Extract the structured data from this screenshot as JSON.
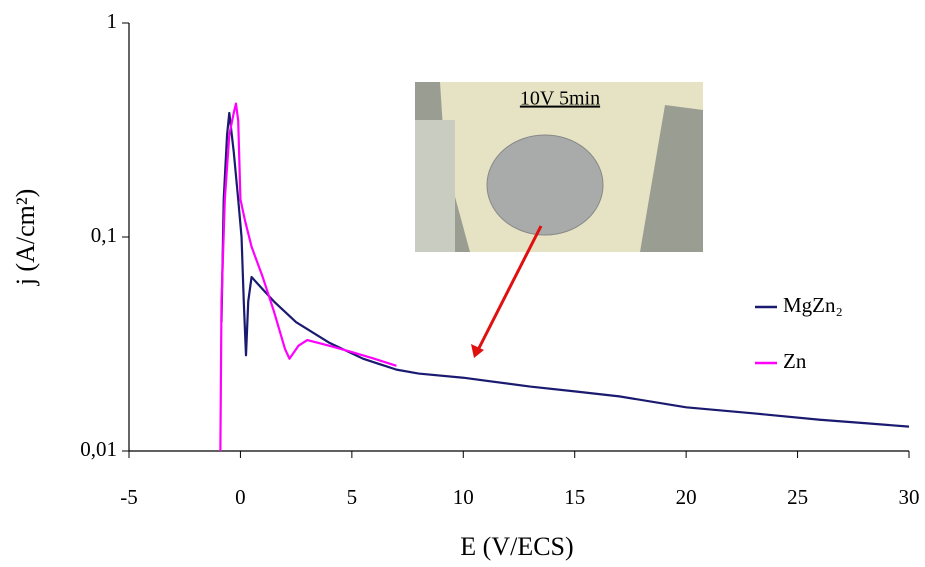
{
  "chart_data": {
    "type": "line",
    "xlabel": "E (V/ECS)",
    "ylabel": "j (A/cm²)",
    "xlim": [
      -5,
      30
    ],
    "xticks": [
      -5,
      0,
      5,
      10,
      15,
      20,
      25,
      30
    ],
    "ylim": [
      0.01,
      1
    ],
    "yticks": [
      {
        "value": 0.01,
        "label": "0,01"
      },
      {
        "value": 0.1,
        "label": "0,1"
      },
      {
        "value": 1,
        "label": "1"
      }
    ],
    "log_y": true,
    "grid": false,
    "legend": "right",
    "annotation": "10V 5min",
    "series": [
      {
        "name": "MgZn₂",
        "color": "#1a1a70",
        "x": [
          -0.85,
          -0.75,
          -0.6,
          -0.5,
          -0.3,
          -0.1,
          0.05,
          0.15,
          0.25,
          0.35,
          0.5,
          1,
          1.5,
          2.5,
          4,
          5.5,
          7,
          8,
          10,
          13,
          15,
          17,
          20,
          23,
          26,
          28,
          30
        ],
        "values": [
          0.04,
          0.15,
          0.3,
          0.38,
          0.25,
          0.15,
          0.1,
          0.05,
          0.028,
          0.05,
          0.065,
          0.057,
          0.05,
          0.04,
          0.032,
          0.027,
          0.024,
          0.023,
          0.022,
          0.02,
          0.019,
          0.018,
          0.016,
          0.015,
          0.014,
          0.0135,
          0.013
        ]
      },
      {
        "name": "Zn",
        "color": "#ff00ff",
        "x": [
          -0.9,
          -0.85,
          -0.7,
          -0.5,
          -0.3,
          -0.2,
          -0.1,
          0,
          0.2,
          0.5,
          1,
          1.5,
          2,
          2.2,
          2.6,
          3,
          4,
          5,
          6,
          7
        ],
        "values": [
          0.01,
          0.05,
          0.15,
          0.3,
          0.38,
          0.42,
          0.35,
          0.15,
          0.12,
          0.09,
          0.065,
          0.045,
          0.03,
          0.027,
          0.031,
          0.033,
          0.031,
          0.029,
          0.027,
          0.025
        ]
      }
    ]
  }
}
